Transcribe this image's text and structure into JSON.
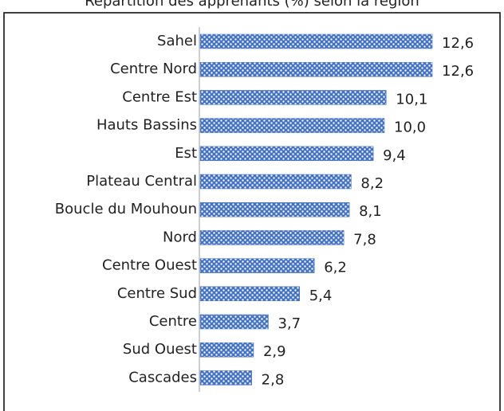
{
  "chart_data": {
    "type": "bar",
    "orientation": "horizontal",
    "title": "Répartition des apprenants (%) selon la région",
    "categories": [
      "Sahel",
      "Centre Nord",
      "Centre Est",
      "Hauts Bassins",
      "Est",
      "Plateau Central",
      "Boucle du Mouhoun",
      "Nord",
      "Centre Ouest",
      "Centre Sud",
      "Centre",
      "Sud Ouest",
      "Cascades"
    ],
    "values": [
      12.6,
      12.6,
      10.1,
      10.0,
      9.4,
      8.2,
      8.1,
      7.8,
      6.2,
      5.4,
      3.7,
      2.9,
      2.8
    ],
    "value_labels": [
      "12,6",
      "12,6",
      "10,1",
      "10,0",
      "9,4",
      "8,2",
      "8,1",
      "7,8",
      "6,2",
      "5,4",
      "3,7",
      "2,9",
      "2,8"
    ],
    "color": "#4472c4"
  }
}
